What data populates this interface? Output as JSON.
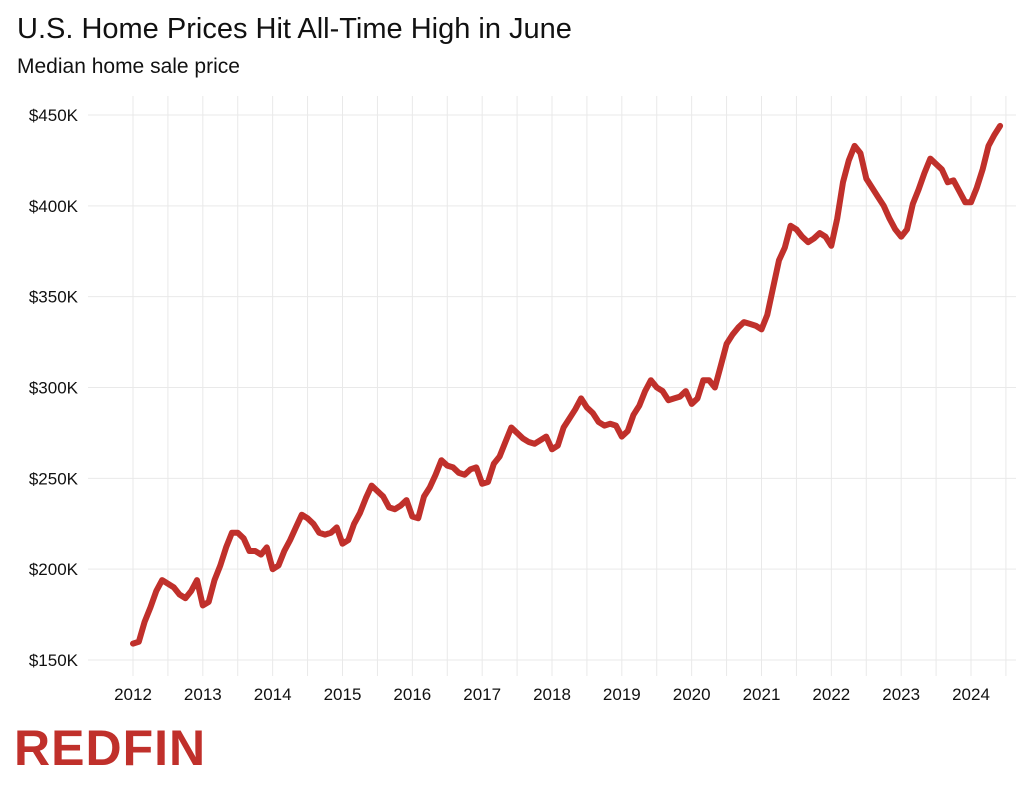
{
  "chart_data": {
    "type": "line",
    "title": "U.S. Home Prices Hit All-Time High in June",
    "subtitle": "Median home sale price",
    "xlabel": "",
    "ylabel": "",
    "x_ticks": [
      "2012",
      "2013",
      "2014",
      "2015",
      "2016",
      "2017",
      "2018",
      "2019",
      "2020",
      "2021",
      "2022",
      "2023",
      "2024"
    ],
    "y_ticks": [
      "$150K",
      "$200K",
      "$250K",
      "$300K",
      "$350K",
      "$400K",
      "$450K"
    ],
    "xlim": [
      2011.5,
      2024.75
    ],
    "ylim": [
      150000,
      452000
    ],
    "grid": true,
    "legend": "none",
    "series": [
      {
        "color": "#c0302b",
        "x": [
          "2012-01",
          "2012-02",
          "2012-03",
          "2012-04",
          "2012-05",
          "2012-06",
          "2012-07",
          "2012-08",
          "2012-09",
          "2012-10",
          "2012-11",
          "2012-12",
          "2013-01",
          "2013-02",
          "2013-03",
          "2013-04",
          "2013-05",
          "2013-06",
          "2013-07",
          "2013-08",
          "2013-09",
          "2013-10",
          "2013-11",
          "2013-12",
          "2014-01",
          "2014-02",
          "2014-03",
          "2014-04",
          "2014-05",
          "2014-06",
          "2014-07",
          "2014-08",
          "2014-09",
          "2014-10",
          "2014-11",
          "2014-12",
          "2015-01",
          "2015-02",
          "2015-03",
          "2015-04",
          "2015-05",
          "2015-06",
          "2015-07",
          "2015-08",
          "2015-09",
          "2015-10",
          "2015-11",
          "2015-12",
          "2016-01",
          "2016-02",
          "2016-03",
          "2016-04",
          "2016-05",
          "2016-06",
          "2016-07",
          "2016-08",
          "2016-09",
          "2016-10",
          "2016-11",
          "2016-12",
          "2017-01",
          "2017-02",
          "2017-03",
          "2017-04",
          "2017-05",
          "2017-06",
          "2017-07",
          "2017-08",
          "2017-09",
          "2017-10",
          "2017-11",
          "2017-12",
          "2018-01",
          "2018-02",
          "2018-03",
          "2018-04",
          "2018-05",
          "2018-06",
          "2018-07",
          "2018-08",
          "2018-09",
          "2018-10",
          "2018-11",
          "2018-12",
          "2019-01",
          "2019-02",
          "2019-03",
          "2019-04",
          "2019-05",
          "2019-06",
          "2019-07",
          "2019-08",
          "2019-09",
          "2019-10",
          "2019-11",
          "2019-12",
          "2020-01",
          "2020-02",
          "2020-03",
          "2020-04",
          "2020-05",
          "2020-06",
          "2020-07",
          "2020-08",
          "2020-09",
          "2020-10",
          "2020-11",
          "2020-12",
          "2021-01",
          "2021-02",
          "2021-03",
          "2021-04",
          "2021-05",
          "2021-06",
          "2021-07",
          "2021-08",
          "2021-09",
          "2021-10",
          "2021-11",
          "2021-12",
          "2022-01",
          "2022-02",
          "2022-03",
          "2022-04",
          "2022-05",
          "2022-06",
          "2022-07",
          "2022-08",
          "2022-09",
          "2022-10",
          "2022-11",
          "2022-12",
          "2023-01",
          "2023-02",
          "2023-03",
          "2023-04",
          "2023-05",
          "2023-06",
          "2023-07",
          "2023-08",
          "2023-09",
          "2023-10",
          "2023-11",
          "2023-12",
          "2024-01",
          "2024-02",
          "2024-03",
          "2024-04",
          "2024-05",
          "2024-06"
        ],
        "values": [
          159000,
          160000,
          171000,
          179000,
          188000,
          194000,
          192000,
          190000,
          186000,
          184000,
          188000,
          194000,
          180000,
          182000,
          194000,
          202000,
          212000,
          220000,
          220000,
          217000,
          210000,
          210000,
          208000,
          212000,
          200000,
          202000,
          210000,
          216000,
          223000,
          230000,
          228000,
          225000,
          220000,
          219000,
          220000,
          223000,
          214000,
          216000,
          225000,
          231000,
          239000,
          246000,
          243000,
          240000,
          234000,
          233000,
          235000,
          238000,
          229000,
          228000,
          240000,
          245000,
          252000,
          260000,
          257000,
          256000,
          253000,
          252000,
          255000,
          256000,
          247000,
          248000,
          258000,
          262000,
          270000,
          278000,
          275000,
          272000,
          270000,
          269000,
          271000,
          273000,
          266000,
          268000,
          278000,
          283000,
          288000,
          294000,
          289000,
          286000,
          281000,
          279000,
          280000,
          279000,
          273000,
          276000,
          285000,
          290000,
          298000,
          304000,
          300000,
          298000,
          293000,
          294000,
          295000,
          298000,
          291000,
          294000,
          304000,
          304000,
          300000,
          312000,
          324000,
          329000,
          333000,
          336000,
          335000,
          334000,
          332000,
          340000,
          355000,
          370000,
          377000,
          389000,
          387000,
          383000,
          380000,
          382000,
          385000,
          383000,
          378000,
          393000,
          413000,
          425000,
          433000,
          429000,
          415000,
          410000,
          405000,
          400000,
          393000,
          387000,
          383000,
          387000,
          401000,
          409000,
          418000,
          426000,
          423000,
          420000,
          413000,
          414000,
          408000,
          402000,
          402000,
          410000,
          420000,
          433000,
          439000,
          444000
        ]
      }
    ]
  },
  "brand": {
    "logo_text": "REDFIN",
    "color": "#c0302b"
  }
}
